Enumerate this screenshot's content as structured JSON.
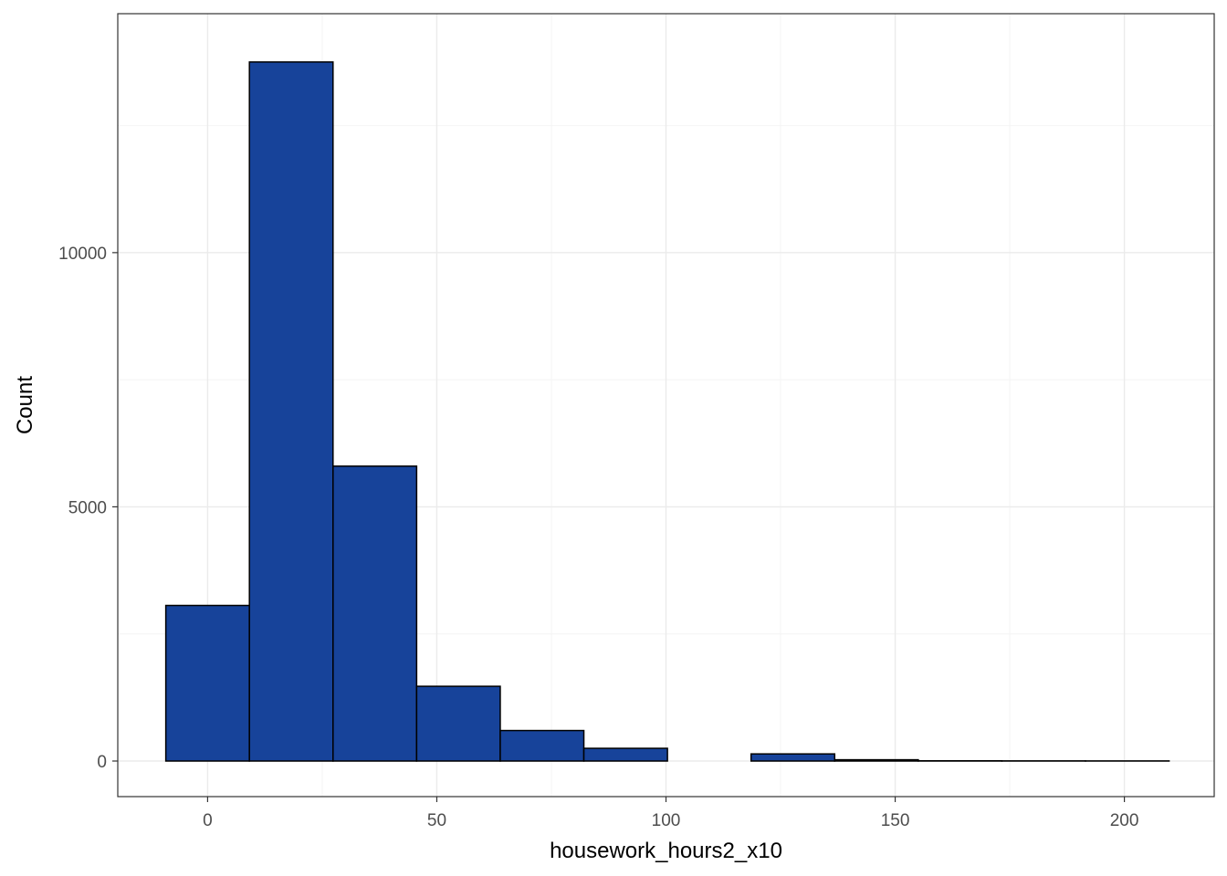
{
  "chart_data": {
    "type": "histogram",
    "title": "",
    "xlabel": "housework_hours2_x10",
    "ylabel": "Count",
    "xlim": [
      -19.6,
      219.6
    ],
    "ylim": [
      -700,
      14700
    ],
    "x_ticks": [
      0,
      50,
      100,
      150,
      200
    ],
    "x_tick_labels": [
      "0",
      "50",
      "100",
      "150",
      "200"
    ],
    "y_ticks": [
      0,
      5000,
      10000
    ],
    "y_tick_labels": [
      "0",
      "5000",
      "10000"
    ],
    "bins": [
      {
        "start": -9.12,
        "end": 9.12,
        "count": 3060
      },
      {
        "start": 9.12,
        "end": 27.36,
        "count": 13750
      },
      {
        "start": 27.36,
        "end": 45.6,
        "count": 5800
      },
      {
        "start": 45.6,
        "end": 63.84,
        "count": 1470
      },
      {
        "start": 63.84,
        "end": 82.08,
        "count": 600
      },
      {
        "start": 82.08,
        "end": 100.32,
        "count": 250
      },
      {
        "start": 100.32,
        "end": 118.56,
        "count": 0
      },
      {
        "start": 118.56,
        "end": 136.8,
        "count": 140
      },
      {
        "start": 136.8,
        "end": 155.04,
        "count": 25
      },
      {
        "start": 155.04,
        "end": 173.28,
        "count": 5
      },
      {
        "start": 173.28,
        "end": 191.52,
        "count": 3
      },
      {
        "start": 191.52,
        "end": 209.76,
        "count": 2
      }
    ],
    "grid": true,
    "colors": {
      "bar_fill": "#17439a",
      "bar_stroke": "#000000",
      "grid_major": "#ebebeb",
      "grid_minor": "#f4f4f4",
      "panel_border": "#333333"
    }
  }
}
